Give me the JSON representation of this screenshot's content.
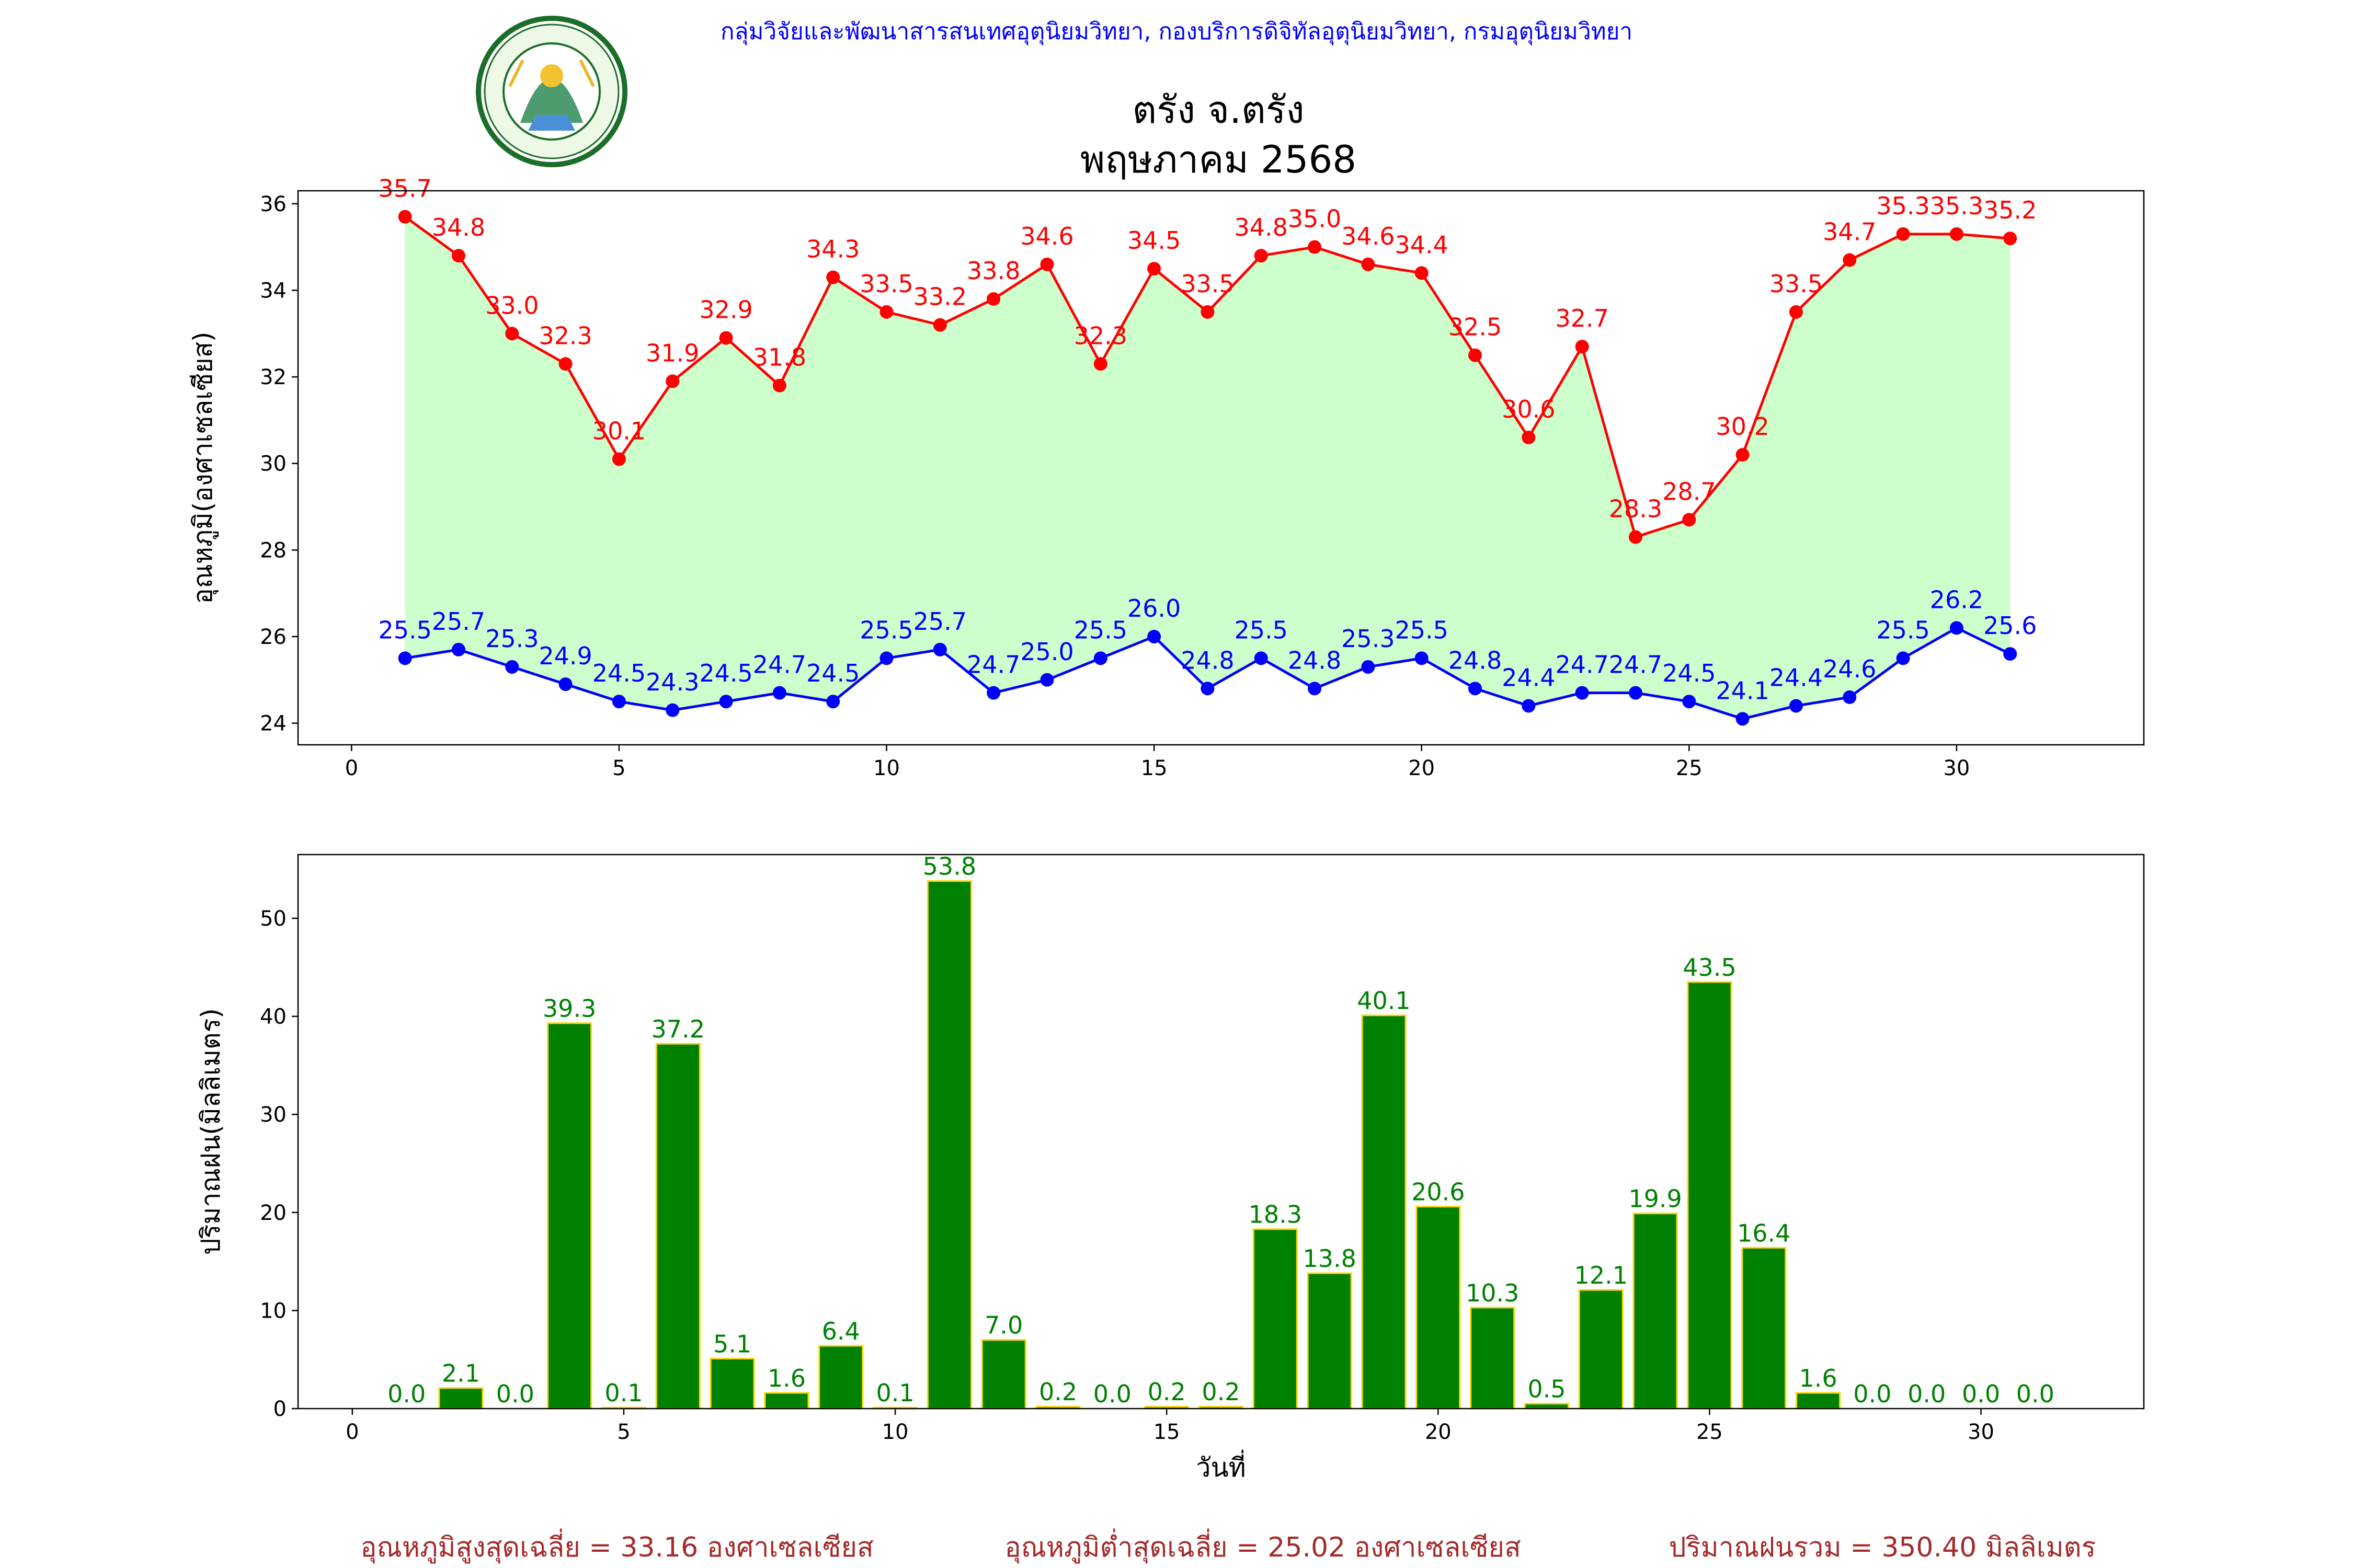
{
  "header": {
    "org_line": "กลุ่มวิจัยและพัฒนาสารสนเทศอุตุนิยมวิทยา, กองบริการดิจิทัลอุตุนิยมวิทยา, กรมอุตุนิยมวิทยา",
    "title_line1": "ตรัง จ.ตรัง",
    "title_line2": "พฤษภาคม 2568",
    "logo_text_top": "กรมอุตุนิยมวิทยา",
    "logo_text_bottom": "METEOROLOGICAL DEPARTMENT"
  },
  "colors": {
    "max_line": "#ff0000",
    "min_line": "#0000ff",
    "fill": "#ccffcc",
    "bar": "#008000",
    "bar_edge": "#ffd700",
    "bar_label": "#008000",
    "org_text": "#0000ff",
    "summary_text": "#a52a2a"
  },
  "chart_data": [
    {
      "type": "line",
      "ylabel": "อุณหภูมิ(องศาเซลเซียส)",
      "xlabel": "",
      "xlim": [
        -1,
        33.5
      ],
      "ylim": [
        23.5,
        36.3
      ],
      "xticks": [
        0,
        5,
        10,
        15,
        20,
        25,
        30
      ],
      "yticks": [
        24,
        26,
        28,
        30,
        32,
        34,
        36
      ],
      "x": [
        1,
        2,
        3,
        4,
        5,
        6,
        7,
        8,
        9,
        10,
        11,
        12,
        13,
        14,
        15,
        16,
        17,
        18,
        19,
        20,
        21,
        22,
        23,
        24,
        25,
        26,
        27,
        28,
        29,
        30,
        31
      ],
      "series": [
        {
          "key": "max",
          "values": [
            35.7,
            34.8,
            33.0,
            32.3,
            30.1,
            31.9,
            32.9,
            31.8,
            34.3,
            33.5,
            33.2,
            33.8,
            34.6,
            32.3,
            34.5,
            33.5,
            34.8,
            35.0,
            34.6,
            34.4,
            32.5,
            30.6,
            32.7,
            28.3,
            28.7,
            30.2,
            33.5,
            34.7,
            35.3,
            35.3,
            35.2
          ]
        },
        {
          "key": "min",
          "values": [
            25.5,
            25.7,
            25.3,
            24.9,
            24.5,
            24.3,
            24.5,
            24.7,
            24.5,
            25.5,
            25.7,
            24.7,
            25.0,
            25.5,
            26.0,
            24.8,
            25.5,
            24.8,
            25.3,
            25.5,
            24.8,
            24.4,
            24.7,
            24.7,
            24.5,
            24.1,
            24.4,
            24.6,
            25.5,
            26.2,
            25.6
          ]
        }
      ],
      "fill_between": true
    },
    {
      "type": "bar",
      "ylabel": "ปริมาณฝน(มิลลิเมตร)",
      "xlabel": "วันที่",
      "xlim": [
        -1,
        33
      ],
      "ylim": [
        0,
        56.5
      ],
      "xticks": [
        0,
        5,
        10,
        15,
        20,
        25,
        30
      ],
      "yticks": [
        0,
        10,
        20,
        30,
        40,
        50
      ],
      "x": [
        1,
        2,
        3,
        4,
        5,
        6,
        7,
        8,
        9,
        10,
        11,
        12,
        13,
        14,
        15,
        16,
        17,
        18,
        19,
        20,
        21,
        22,
        23,
        24,
        25,
        26,
        27,
        28,
        29,
        30,
        31
      ],
      "values": [
        0.0,
        2.1,
        0.0,
        39.3,
        0.1,
        37.2,
        5.1,
        1.6,
        6.4,
        0.1,
        53.8,
        7.0,
        0.2,
        0.0,
        0.2,
        0.2,
        18.3,
        13.8,
        40.1,
        20.6,
        10.3,
        0.5,
        12.1,
        19.9,
        43.5,
        16.4,
        1.6,
        0.0,
        0.0,
        0.0,
        0.0
      ]
    }
  ],
  "summary": {
    "avg_max": "อุณหภูมิสูงสุดเฉลี่ย = 33.16 องศาเซลเซียส",
    "avg_min": "อุณหภูมิต่ำสุดเฉลี่ย = 25.02 องศาเซลเซียส",
    "total_rain": "ปริมาณฝนรวม = 350.40 มิลลิเมตร"
  }
}
